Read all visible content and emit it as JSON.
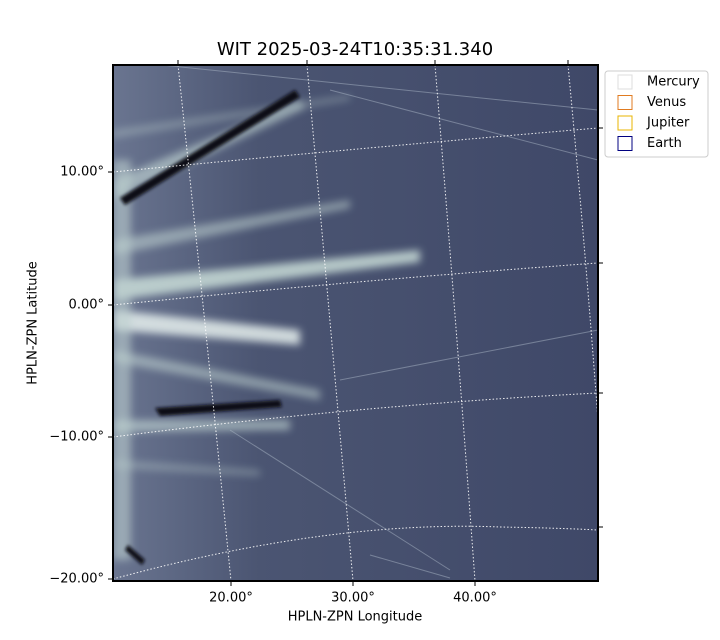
{
  "title": "WIT 2025-03-24T10:35:31.340",
  "x_axis": {
    "label": "HPLN-ZPN Longitude",
    "ticks": [
      "20.00°",
      "30.00°",
      "40.00°"
    ]
  },
  "y_axis": {
    "label": "HPLN-ZPN Latitude",
    "ticks": [
      "10.00°",
      "0.00°",
      "−10.00°",
      "−20.00°"
    ]
  },
  "legend": [
    {
      "name": "Mercury",
      "color": "#dddddd"
    },
    {
      "name": "Venus",
      "color": "#e07b20"
    },
    {
      "name": "Jupiter",
      "color": "#e8b400"
    },
    {
      "name": "Earth",
      "color": "#000080"
    }
  ]
}
